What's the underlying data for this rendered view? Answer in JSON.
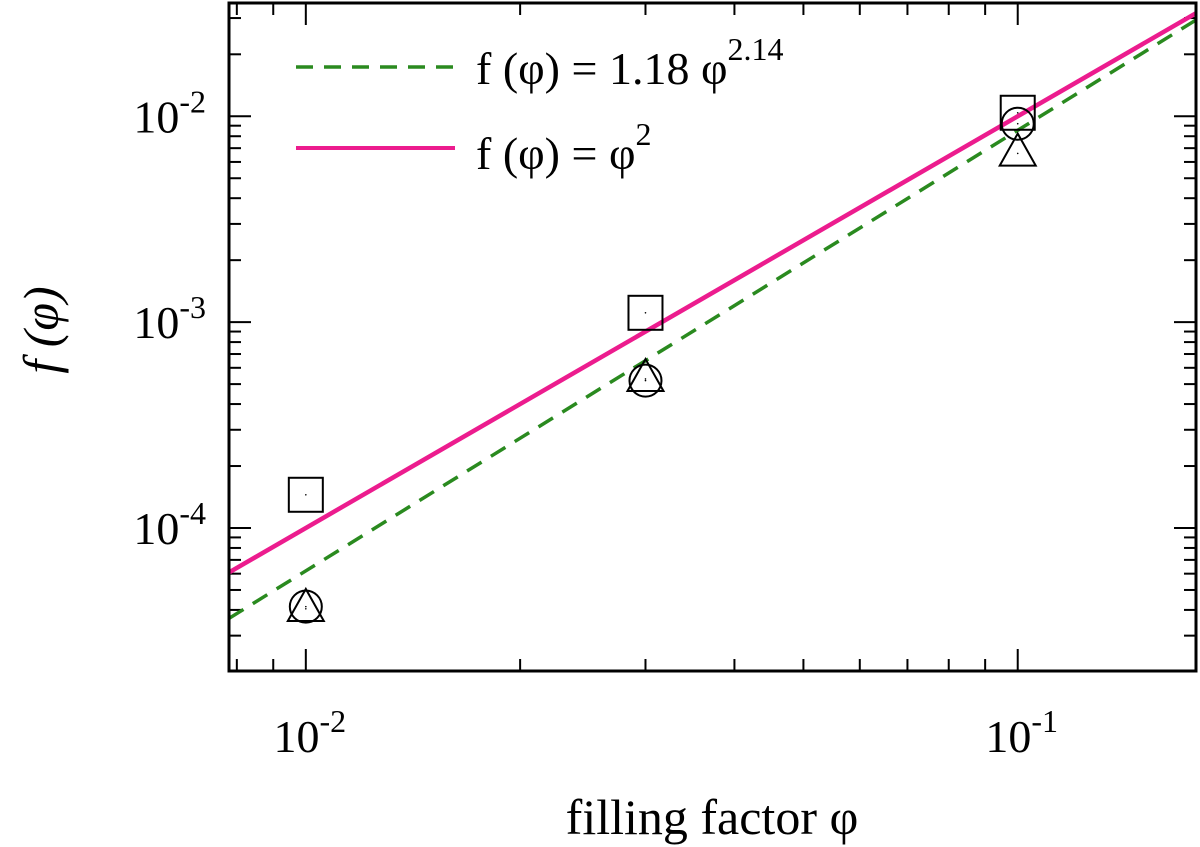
{
  "chart_data": {
    "type": "scatter",
    "xlabel": "filling factor φ",
    "ylabel": "f (φ)",
    "x_scale": "log",
    "y_scale": "log",
    "xlim": [
      0.0078,
      0.178
    ],
    "ylim": [
      2.02e-05,
      0.0355
    ],
    "x_ticks": [
      {
        "value": 0.01,
        "base": "10",
        "exp": "-2"
      },
      {
        "value": 0.1,
        "base": "10",
        "exp": "-1"
      }
    ],
    "y_ticks": [
      {
        "value": 0.0001,
        "base": "10",
        "exp": "-4"
      },
      {
        "value": 0.001,
        "base": "10",
        "exp": "-3"
      },
      {
        "value": 0.01,
        "base": "10",
        "exp": "-2"
      }
    ],
    "grid": false,
    "legend_position": "top-left",
    "fits": [
      {
        "name_lhs": "f (φ) = 1.18 φ",
        "name_exp": "2.14",
        "coef": 1.18,
        "power": 2.14,
        "color": "#2a8a1f",
        "dash": "dashed"
      },
      {
        "name_lhs": "f (φ) = φ",
        "name_exp": "2",
        "coef": 1.0,
        "power": 2.0,
        "color": "#ec1c8e",
        "dash": "solid"
      }
    ],
    "series": [
      {
        "marker": "square",
        "x": [
          0.01,
          0.03,
          0.1
        ],
        "y": [
          0.000145,
          0.00111,
          0.0104
        ]
      },
      {
        "marker": "circle",
        "x": [
          0.01,
          0.03,
          0.1
        ],
        "y": [
          4.15e-05,
          0.00052,
          0.0092
        ]
      },
      {
        "marker": "triangle",
        "x": [
          0.01,
          0.03,
          0.1
        ],
        "y": [
          4.05e-05,
          0.00053,
          0.0066
        ]
      }
    ]
  }
}
